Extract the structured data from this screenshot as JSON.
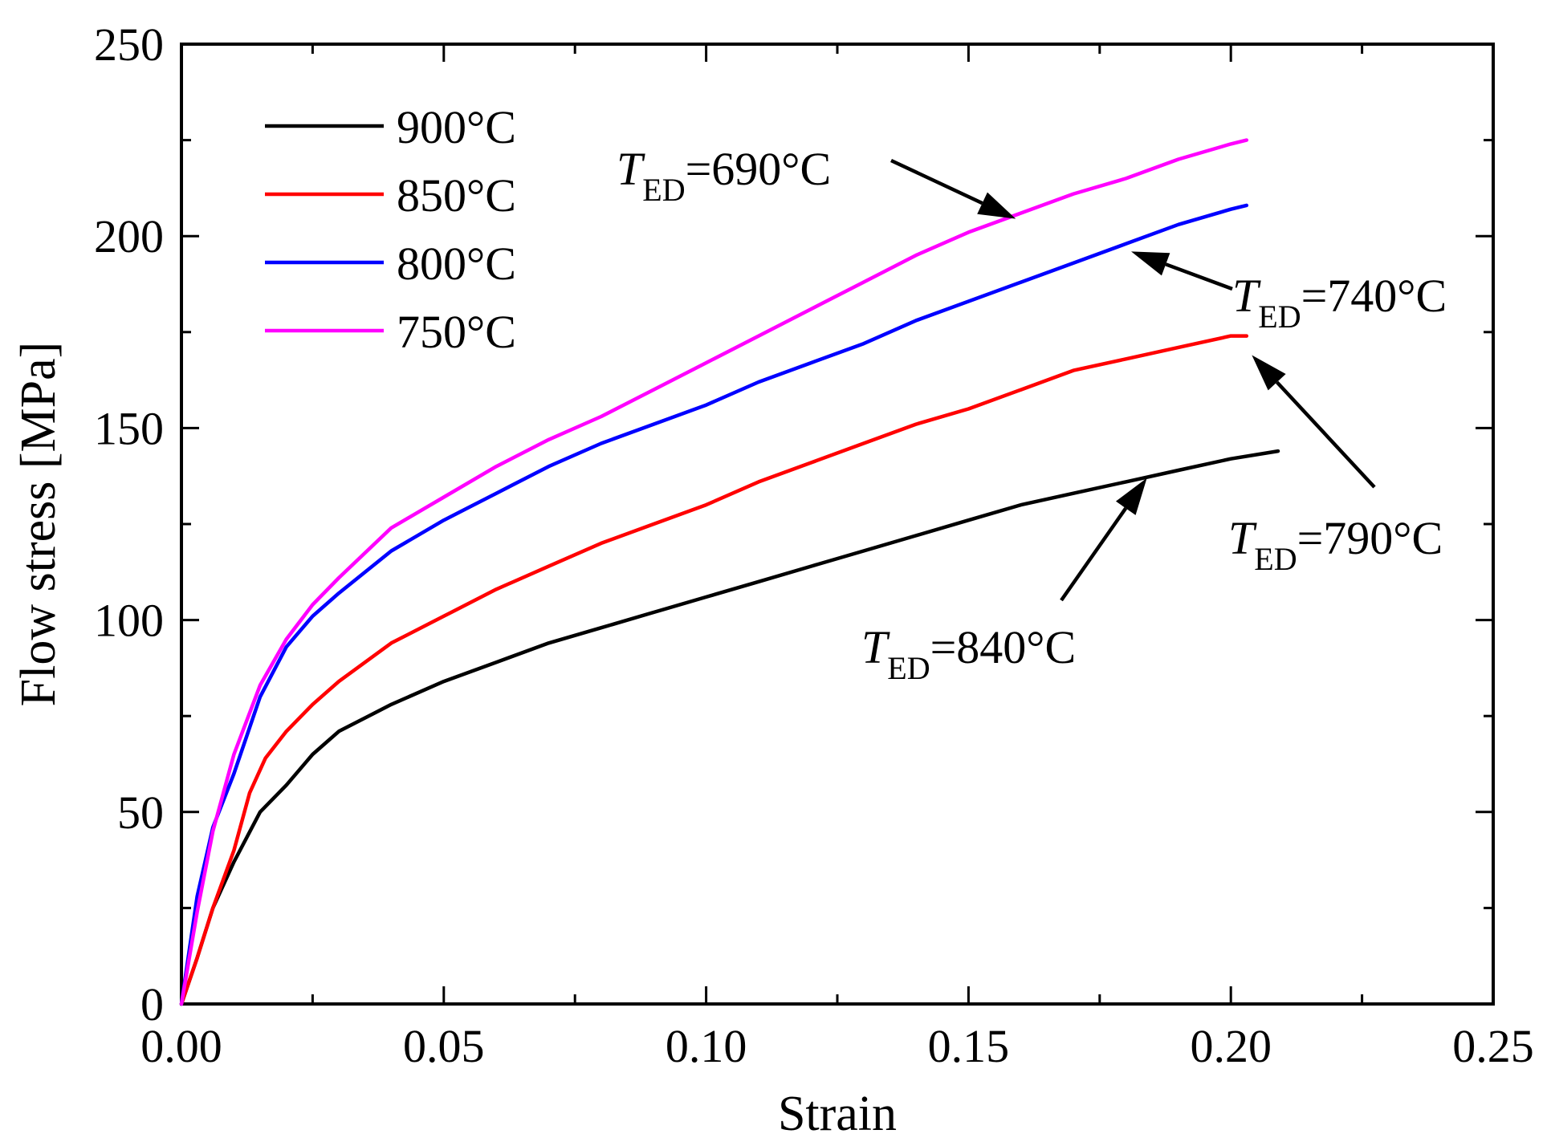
{
  "chart_data": {
    "type": "line",
    "title": "",
    "xlabel": "Strain",
    "ylabel": "Flow stress [MPa]",
    "xlim": [
      0.0,
      0.25
    ],
    "ylim": [
      0,
      250
    ],
    "x_ticks": [
      "0.00",
      "0.05",
      "0.10",
      "0.15",
      "0.20",
      "0.25"
    ],
    "y_ticks": [
      "0",
      "50",
      "100",
      "150",
      "200",
      "250"
    ],
    "legend_position": "top-left",
    "series": [
      {
        "name": "900°C",
        "color": "#000000",
        "x": [
          0.0,
          0.003,
          0.006,
          0.01,
          0.015,
          0.02,
          0.025,
          0.03,
          0.04,
          0.05,
          0.06,
          0.07,
          0.08,
          0.09,
          0.1,
          0.11,
          0.12,
          0.13,
          0.14,
          0.15,
          0.16,
          0.17,
          0.18,
          0.19,
          0.2,
          0.209
        ],
        "y": [
          0,
          12,
          25,
          37,
          50,
          57,
          65,
          71,
          78,
          84,
          89,
          94,
          98,
          102,
          106,
          110,
          114,
          118,
          122,
          126,
          130,
          133,
          136,
          139,
          142,
          144
        ]
      },
      {
        "name": "850°C",
        "color": "#ff0000",
        "x": [
          0.0,
          0.003,
          0.006,
          0.01,
          0.013,
          0.016,
          0.02,
          0.025,
          0.03,
          0.04,
          0.05,
          0.06,
          0.07,
          0.08,
          0.09,
          0.1,
          0.11,
          0.12,
          0.13,
          0.14,
          0.15,
          0.16,
          0.17,
          0.18,
          0.19,
          0.2,
          0.203
        ],
        "y": [
          0,
          12,
          25,
          40,
          55,
          64,
          71,
          78,
          84,
          94,
          101,
          108,
          114,
          120,
          125,
          130,
          136,
          141,
          146,
          151,
          155,
          160,
          165,
          168,
          171,
          174,
          174
        ]
      },
      {
        "name": "800°C",
        "color": "#0000ff",
        "x": [
          0.0,
          0.003,
          0.006,
          0.01,
          0.015,
          0.02,
          0.025,
          0.03,
          0.04,
          0.05,
          0.06,
          0.07,
          0.08,
          0.09,
          0.1,
          0.11,
          0.12,
          0.13,
          0.14,
          0.15,
          0.16,
          0.17,
          0.18,
          0.19,
          0.2,
          0.203
        ],
        "y": [
          0,
          28,
          46,
          60,
          80,
          93,
          101,
          107,
          118,
          126,
          133,
          140,
          146,
          151,
          156,
          162,
          167,
          172,
          178,
          183,
          188,
          193,
          198,
          203,
          207,
          208
        ]
      },
      {
        "name": "750°C",
        "color": "#ff00ff",
        "x": [
          0.0,
          0.003,
          0.006,
          0.01,
          0.015,
          0.02,
          0.025,
          0.03,
          0.04,
          0.05,
          0.06,
          0.07,
          0.08,
          0.09,
          0.1,
          0.11,
          0.12,
          0.13,
          0.14,
          0.15,
          0.16,
          0.17,
          0.18,
          0.19,
          0.2,
          0.203
        ],
        "y": [
          0,
          24,
          45,
          65,
          83,
          95,
          104,
          111,
          124,
          132,
          140,
          147,
          153,
          160,
          167,
          174,
          181,
          188,
          195,
          201,
          206,
          211,
          215,
          220,
          224,
          225
        ]
      }
    ],
    "annotations": [
      {
        "label_main": "T",
        "label_sub": "ED",
        "label_tail": "=690°C",
        "points_to": [
          0.159,
          204.5
        ]
      },
      {
        "label_main": "T",
        "label_sub": "ED",
        "label_tail": "=740°C",
        "points_to": [
          0.181,
          196
        ]
      },
      {
        "label_main": "T",
        "label_sub": "ED",
        "label_tail": "=790°C",
        "points_to": [
          0.204,
          169
        ]
      },
      {
        "label_main": "T",
        "label_sub": "ED",
        "label_tail": "=840°C",
        "points_to": [
          0.184,
          137
        ]
      }
    ]
  }
}
